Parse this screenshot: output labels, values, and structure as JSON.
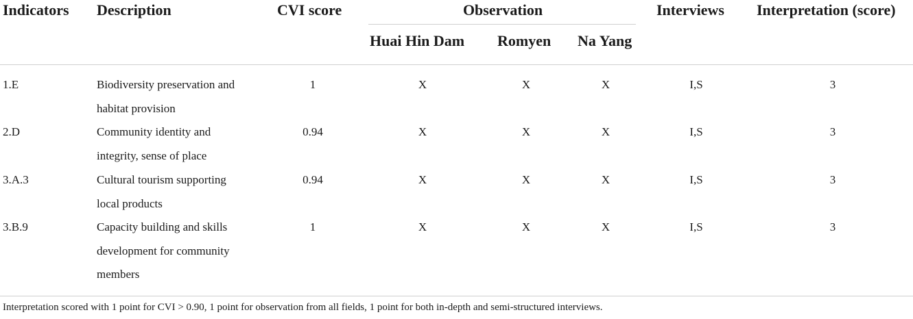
{
  "headers": {
    "indicators": "Indicators",
    "description": "Description",
    "cvi_score": "CVI score",
    "observation": "Observation",
    "observation_sub": [
      "Huai Hin Dam",
      "Romyen",
      "Na Yang"
    ],
    "interviews": "Interviews",
    "interpretation": "Interpretation (score)"
  },
  "rows": [
    {
      "indicator": "1.E",
      "description_lines": [
        "Biodiversity preservation and",
        "habitat provision"
      ],
      "cvi": "1",
      "obs": [
        "X",
        "X",
        "X"
      ],
      "interviews": "I,S",
      "interpretation": "3"
    },
    {
      "indicator": "2.D",
      "description_lines": [
        "Community identity and",
        "integrity, sense of place"
      ],
      "cvi": "0.94",
      "obs": [
        "X",
        "X",
        "X"
      ],
      "interviews": "I,S",
      "interpretation": "3"
    },
    {
      "indicator": "3.A.3",
      "description_lines": [
        "Cultural tourism supporting",
        "local products"
      ],
      "cvi": "0.94",
      "obs": [
        "X",
        "X",
        "X"
      ],
      "interviews": "I,S",
      "interpretation": "3"
    },
    {
      "indicator": "3.B.9",
      "description_lines": [
        "Capacity building and skills",
        "development for community",
        "members"
      ],
      "cvi": "1",
      "obs": [
        "X",
        "X",
        "X"
      ],
      "interviews": "I,S",
      "interpretation": "3"
    }
  ],
  "footnote": "Interpretation scored with 1 point for CVI > 0.90, 1 point for observation from all fields, 1 point for both in-depth and semi-structured interviews."
}
